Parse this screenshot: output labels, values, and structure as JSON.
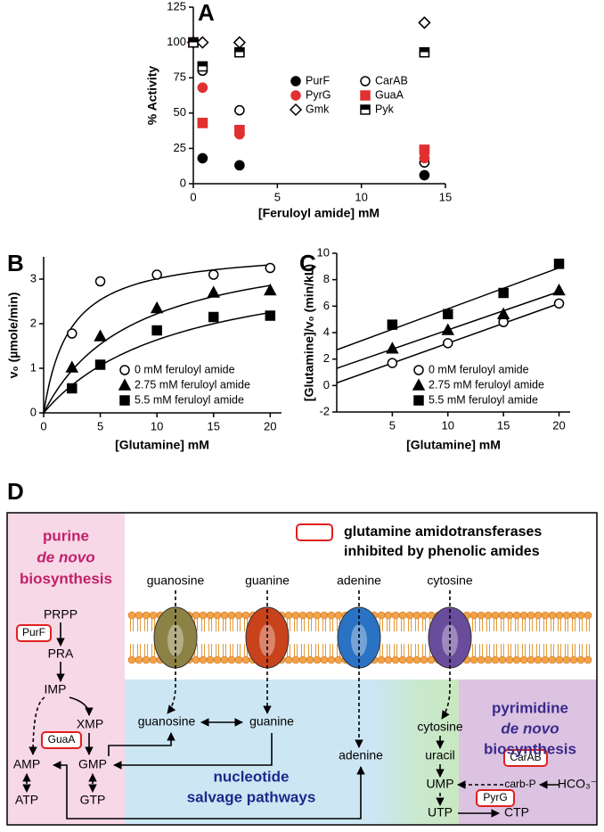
{
  "chart_data": [
    {
      "type": "line",
      "label": "A",
      "xlabel": "[Feruloyl amide] mM",
      "ylabel": "% Activity",
      "x": [
        0,
        0.55,
        2.75,
        13.75
      ],
      "xlim": [
        0,
        15
      ],
      "xticks": [
        0,
        5,
        10,
        15
      ],
      "ylim": [
        0,
        125
      ],
      "yticks": [
        0,
        25,
        50,
        75,
        100,
        125
      ],
      "line_style": "dashed",
      "line_color": "#000000",
      "series": [
        {
          "name": "PurF",
          "color": "#000000",
          "marker": "circle",
          "fill": "filled",
          "values": [
            100,
            18,
            13,
            6
          ]
        },
        {
          "name": "CarAB",
          "color": "#000000",
          "marker": "circle",
          "fill": "open",
          "values": [
            100,
            80,
            52,
            15
          ]
        },
        {
          "name": "PyrG",
          "color": "#e03030",
          "marker": "circle",
          "fill": "filled",
          "values": [
            100,
            68,
            35,
            18
          ]
        },
        {
          "name": "GuaA",
          "color": "#e03030",
          "marker": "square",
          "fill": "filled",
          "values": [
            100,
            43,
            38,
            24
          ]
        },
        {
          "name": "Gmk",
          "color": "#000000",
          "marker": "diamond",
          "fill": "open",
          "values": [
            100,
            100,
            100,
            114
          ]
        },
        {
          "name": "Pyk",
          "color": "#000000",
          "marker": "square",
          "fill": "half",
          "values": [
            100,
            83,
            93,
            93
          ]
        }
      ]
    },
    {
      "type": "scatter",
      "label": "B",
      "xlabel": "[Glutamine] mM",
      "ylabel": "v₀ (µmole/min)",
      "x": [
        2.5,
        5,
        10,
        15,
        20
      ],
      "xlim": [
        0,
        21
      ],
      "xticks": [
        0,
        5,
        10,
        15,
        20
      ],
      "ylim": [
        0,
        3.5
      ],
      "yticks": [
        0,
        1,
        2,
        3
      ],
      "series": [
        {
          "name": "0 mM feruloyl amide",
          "color": "#000000",
          "marker": "circle",
          "fill": "open",
          "values": [
            1.78,
            2.95,
            3.1,
            3.1,
            3.25
          ],
          "fit": {
            "vmax": 3.7,
            "km": 2.3
          }
        },
        {
          "name": "2.75 mM feruloyl amide",
          "color": "#000000",
          "marker": "triangle",
          "fill": "filled",
          "values": [
            1.02,
            1.72,
            2.35,
            2.7,
            2.75
          ],
          "fit": {
            "vmax": 4.0,
            "km": 8
          }
        },
        {
          "name": "5.5 mM feruloyl amide",
          "color": "#000000",
          "marker": "square",
          "fill": "filled",
          "values": [
            0.55,
            1.08,
            1.85,
            2.15,
            2.18
          ],
          "fit": {
            "vmax": 3.6,
            "km": 12
          }
        }
      ]
    },
    {
      "type": "scatter",
      "label": "C",
      "xlabel": "[Glutamine] mM",
      "ylabel": "[Glutamine]/v₀ (min/kL)",
      "x": [
        5,
        10,
        15,
        20
      ],
      "xlim": [
        0,
        21
      ],
      "xticks": [
        5,
        10,
        15,
        20
      ],
      "ylim": [
        -2,
        10
      ],
      "yticks": [
        -2,
        0,
        2,
        4,
        6,
        8,
        10
      ],
      "series": [
        {
          "name": "0 mM feruloyl amide",
          "color": "#000000",
          "marker": "circle",
          "fill": "open",
          "values": [
            1.7,
            3.2,
            4.8,
            6.2
          ],
          "fit": {
            "slope": 0.3,
            "intercept": 0.2
          }
        },
        {
          "name": "2.75 mM feruloyl amide",
          "color": "#000000",
          "marker": "triangle",
          "fill": "filled",
          "values": [
            2.8,
            4.2,
            5.4,
            7.2
          ],
          "fit": {
            "slope": 0.29,
            "intercept": 1.3
          }
        },
        {
          "name": "5.5 mM feruloyl amide",
          "color": "#000000",
          "marker": "square",
          "fill": "filled",
          "values": [
            4.6,
            5.4,
            7.0,
            9.2
          ],
          "fit": {
            "slope": 0.31,
            "intercept": 2.7
          }
        }
      ]
    }
  ],
  "diagram": {
    "label": "D",
    "purine_title": [
      "purine",
      "de novo",
      "biosynthesis"
    ],
    "legend": [
      "glutamine amidotransferases",
      "inhibited by phenolic amides"
    ],
    "transported": [
      "guanosine",
      "guanine",
      "adenine",
      "cytosine"
    ],
    "purine_nodes": [
      "PRPP",
      "PRA",
      "IMP",
      "XMP",
      "AMP",
      "GMP",
      "ATP",
      "GTP"
    ],
    "salvage_nodes": [
      "guanosine",
      "guanine",
      "adenine"
    ],
    "pyrimidine_nodes": [
      "cytosine",
      "uracil",
      "UMP",
      "UTP",
      "CTP",
      "carb-P",
      "HCO₃⁻"
    ],
    "enzymes": [
      "PurF",
      "GuaA",
      "CarAB",
      "PyrG"
    ],
    "salvage_title": [
      "nucleotide",
      "salvage pathways"
    ],
    "pyrimidine_title": [
      "pyrimidine",
      "de novo",
      "biosynthesis"
    ]
  }
}
